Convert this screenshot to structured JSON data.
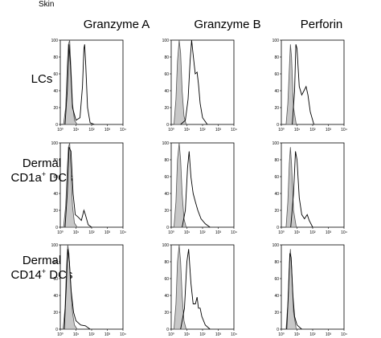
{
  "figure": {
    "title": "Skin",
    "columns": [
      "Granzyme A",
      "Granzyme B",
      "Perforin"
    ],
    "rows": [
      {
        "label": "LCs",
        "sup": "",
        "suffix": "",
        "prefix": ""
      },
      {
        "prefix": "Dermal",
        "label": "CD1a",
        "sup": "+",
        "suffix": " DCs"
      },
      {
        "prefix": "Dermal",
        "label": "CD14",
        "sup": "+",
        "suffix": " DCs"
      }
    ]
  },
  "chart_data": {
    "type": "area",
    "panel_type": "flow-cytometry histogram overlay",
    "x_scale": "log",
    "xlim": [
      1,
      10000
    ],
    "x_tick_labels": [
      "10⁰",
      "10¹",
      "10²",
      "10³",
      "10⁴"
    ],
    "ylim": [
      0,
      100
    ],
    "y_tick_labels": [
      "0",
      "20",
      "40",
      "60",
      "80",
      "100"
    ],
    "fill_color": "#c8c8c8",
    "line_color": "#000000",
    "series_styles": [
      "filled gray (control)",
      "open black line (stained)"
    ],
    "panels": [
      {
        "row": 0,
        "col": 0,
        "control": [
          [
            1.6,
            0
          ],
          [
            2.2,
            20
          ],
          [
            2.8,
            70
          ],
          [
            3.3,
            95
          ],
          [
            4.0,
            100
          ],
          [
            5.0,
            60
          ],
          [
            6.0,
            25
          ],
          [
            8,
            5
          ],
          [
            12,
            0
          ]
        ],
        "stained": [
          [
            2.0,
            0
          ],
          [
            2.8,
            40
          ],
          [
            3.6,
            95
          ],
          [
            4.5,
            70
          ],
          [
            6.0,
            20
          ],
          [
            10,
            5
          ],
          [
            18,
            8
          ],
          [
            26,
            45
          ],
          [
            32,
            90
          ],
          [
            36,
            95
          ],
          [
            42,
            70
          ],
          [
            55,
            20
          ],
          [
            80,
            2
          ],
          [
            150,
            0
          ]
        ]
      },
      {
        "row": 0,
        "col": 1,
        "control": [
          [
            1.5,
            0
          ],
          [
            2.0,
            30
          ],
          [
            2.5,
            75
          ],
          [
            3.2,
            100
          ],
          [
            4.0,
            85
          ],
          [
            5.0,
            40
          ],
          [
            6.5,
            10
          ],
          [
            9,
            0
          ]
        ],
        "stained": [
          [
            4,
            0
          ],
          [
            8,
            5
          ],
          [
            12,
            30
          ],
          [
            16,
            75
          ],
          [
            20,
            100
          ],
          [
            26,
            80
          ],
          [
            34,
            60
          ],
          [
            45,
            62
          ],
          [
            55,
            48
          ],
          [
            70,
            25
          ],
          [
            100,
            8
          ],
          [
            200,
            0
          ]
        ]
      },
      {
        "row": 0,
        "col": 2,
        "control": [
          [
            2.0,
            0
          ],
          [
            2.6,
            25
          ],
          [
            3.2,
            65
          ],
          [
            3.8,
            95
          ],
          [
            4.5,
            80
          ],
          [
            6.0,
            20
          ],
          [
            9,
            0
          ]
        ],
        "stained": [
          [
            5,
            0
          ],
          [
            7,
            40
          ],
          [
            8.5,
            95
          ],
          [
            10,
            90
          ],
          [
            14,
            45
          ],
          [
            20,
            35
          ],
          [
            28,
            40
          ],
          [
            38,
            45
          ],
          [
            50,
            35
          ],
          [
            70,
            15
          ],
          [
            120,
            0
          ]
        ]
      },
      {
        "row": 1,
        "col": 0,
        "control": [
          [
            1.6,
            0
          ],
          [
            2.2,
            25
          ],
          [
            2.8,
            70
          ],
          [
            3.3,
            95
          ],
          [
            4.0,
            100
          ],
          [
            5.0,
            60
          ],
          [
            6.0,
            25
          ],
          [
            8,
            5
          ],
          [
            12,
            0
          ]
        ],
        "stained": [
          [
            2.0,
            0
          ],
          [
            2.8,
            40
          ],
          [
            3.6,
            95
          ],
          [
            4.8,
            90
          ],
          [
            6.5,
            40
          ],
          [
            9,
            15
          ],
          [
            14,
            12
          ],
          [
            22,
            8
          ],
          [
            32,
            20
          ],
          [
            40,
            15
          ],
          [
            60,
            3
          ],
          [
            100,
            0
          ]
        ]
      },
      {
        "row": 1,
        "col": 1,
        "control": [
          [
            1.5,
            0
          ],
          [
            2.0,
            30
          ],
          [
            2.5,
            80
          ],
          [
            3.2,
            100
          ],
          [
            4.0,
            80
          ],
          [
            5.0,
            40
          ],
          [
            6.5,
            10
          ],
          [
            9,
            0
          ]
        ],
        "stained": [
          [
            5,
            0
          ],
          [
            8,
            20
          ],
          [
            11,
            70
          ],
          [
            14,
            90
          ],
          [
            18,
            60
          ],
          [
            25,
            40
          ],
          [
            35,
            30
          ],
          [
            50,
            20
          ],
          [
            80,
            10
          ],
          [
            150,
            4
          ],
          [
            300,
            0
          ]
        ]
      },
      {
        "row": 1,
        "col": 2,
        "control": [
          [
            2.0,
            0
          ],
          [
            2.6,
            30
          ],
          [
            3.2,
            75
          ],
          [
            3.8,
            95
          ],
          [
            4.5,
            75
          ],
          [
            6.0,
            20
          ],
          [
            9,
            0
          ]
        ],
        "stained": [
          [
            4,
            0
          ],
          [
            6,
            40
          ],
          [
            8,
            90
          ],
          [
            10,
            80
          ],
          [
            14,
            35
          ],
          [
            20,
            15
          ],
          [
            30,
            10
          ],
          [
            45,
            15
          ],
          [
            60,
            8
          ],
          [
            100,
            0
          ]
        ]
      },
      {
        "row": 2,
        "col": 0,
        "control": [
          [
            1.5,
            0
          ],
          [
            2.0,
            25
          ],
          [
            2.5,
            75
          ],
          [
            3.0,
            100
          ],
          [
            3.6,
            90
          ],
          [
            4.5,
            55
          ],
          [
            6.0,
            20
          ],
          [
            8,
            5
          ],
          [
            12,
            0
          ]
        ],
        "stained": [
          [
            1.8,
            0
          ],
          [
            2.4,
            50
          ],
          [
            3.0,
            95
          ],
          [
            3.8,
            80
          ],
          [
            5.0,
            45
          ],
          [
            7,
            20
          ],
          [
            10,
            10
          ],
          [
            20,
            5
          ],
          [
            40,
            4
          ],
          [
            80,
            0
          ]
        ]
      },
      {
        "row": 2,
        "col": 1,
        "control": [
          [
            1.5,
            0
          ],
          [
            2.0,
            30
          ],
          [
            2.5,
            80
          ],
          [
            3.2,
            100
          ],
          [
            4.0,
            80
          ],
          [
            5.0,
            40
          ],
          [
            6.5,
            10
          ],
          [
            9,
            0
          ]
        ],
        "stained": [
          [
            4,
            0
          ],
          [
            7,
            25
          ],
          [
            10,
            80
          ],
          [
            13,
            95
          ],
          [
            18,
            55
          ],
          [
            25,
            30
          ],
          [
            35,
            30
          ],
          [
            45,
            38
          ],
          [
            55,
            25
          ],
          [
            70,
            25
          ],
          [
            90,
            15
          ],
          [
            150,
            5
          ],
          [
            300,
            0
          ]
        ]
      },
      {
        "row": 2,
        "col": 2,
        "control": [
          [
            2.0,
            0
          ],
          [
            2.6,
            30
          ],
          [
            3.2,
            75
          ],
          [
            3.8,
            95
          ],
          [
            4.5,
            75
          ],
          [
            6.0,
            20
          ],
          [
            9,
            0
          ]
        ],
        "stained": [
          [
            2.2,
            0
          ],
          [
            2.8,
            40
          ],
          [
            3.5,
            90
          ],
          [
            4.2,
            85
          ],
          [
            5.5,
            40
          ],
          [
            7,
            15
          ],
          [
            10,
            5
          ],
          [
            20,
            0
          ]
        ]
      }
    ]
  }
}
